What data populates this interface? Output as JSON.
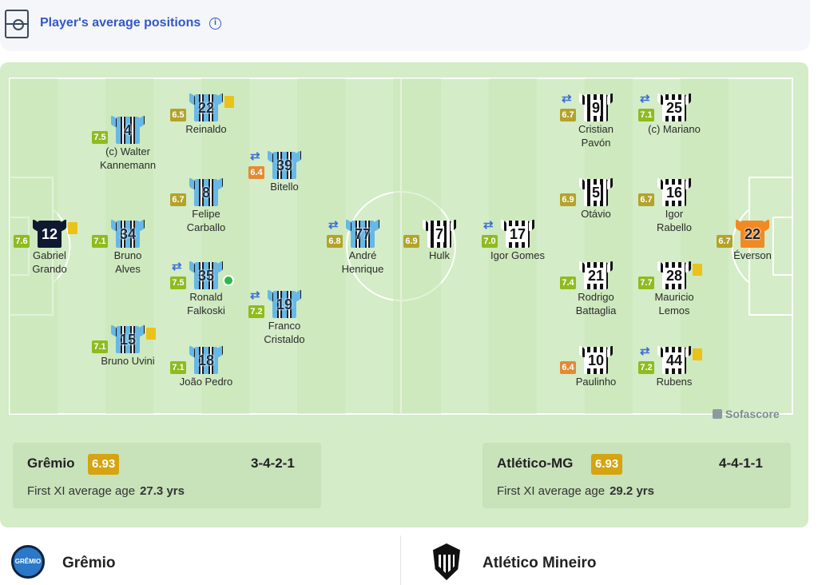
{
  "header": {
    "title": "Player's average positions",
    "info_icon": "info-icon",
    "pitch_icon": "pitch-icon"
  },
  "colors": {
    "panel_bg": "#d4ecc7",
    "pitch_line": "#ffffff",
    "rating_badge": "#d5a410",
    "link_blue": "#3358c6"
  },
  "home": {
    "name": "Grêmio",
    "rating": "6.93",
    "formation": "3-4-2-1",
    "age_label": "First XI average age",
    "age_value": "27.3 yrs",
    "players": [
      {
        "number": "12",
        "name1": "Gabriel",
        "name2": "Grando",
        "rating": "7.6"
      },
      {
        "number": "4",
        "name1": "(c) Walter",
        "name2": "Kannemann",
        "rating": "7.5"
      },
      {
        "number": "34",
        "name1": "Bruno",
        "name2": "Alves",
        "rating": "7.1"
      },
      {
        "number": "15",
        "name1": "Bruno Uvini",
        "name2": "",
        "rating": "7.1"
      },
      {
        "number": "22",
        "name1": "Reinaldo",
        "name2": "",
        "rating": "6.5"
      },
      {
        "number": "8",
        "name1": "Felipe",
        "name2": "Carballo",
        "rating": "6.7"
      },
      {
        "number": "35",
        "name1": "Ronald",
        "name2": "Falkoski",
        "rating": "7.5"
      },
      {
        "number": "18",
        "name1": "João Pedro",
        "name2": "",
        "rating": "7.1"
      },
      {
        "number": "39",
        "name1": "Bitello",
        "name2": "",
        "rating": "6.4"
      },
      {
        "number": "19",
        "name1": "Franco",
        "name2": "Cristaldo",
        "rating": "7.2"
      },
      {
        "number": "77",
        "name1": "André",
        "name2": "Henrique",
        "rating": "6.8"
      }
    ]
  },
  "away": {
    "name": "Atlético-MG",
    "rating": "6.93",
    "formation": "4-4-1-1",
    "age_label": "First XI average age",
    "age_value": "29.2 yrs",
    "players": [
      {
        "number": "7",
        "name1": "Hulk",
        "name2": "",
        "rating": "6.9"
      },
      {
        "number": "17",
        "name1": "Igor Gomes",
        "name2": "",
        "rating": "7.0"
      },
      {
        "number": "9",
        "name1": "Cristian",
        "name2": "Pavón",
        "rating": "6.7"
      },
      {
        "number": "5",
        "name1": "Otávio",
        "name2": "",
        "rating": "6.9"
      },
      {
        "number": "21",
        "name1": "Rodrigo",
        "name2": "Battaglia",
        "rating": "7.4"
      },
      {
        "number": "10",
        "name1": "Paulinho",
        "name2": "",
        "rating": "6.4"
      },
      {
        "number": "25",
        "name1": "(c) Mariano",
        "name2": "",
        "rating": "7.1"
      },
      {
        "number": "16",
        "name1": "Igor",
        "name2": "Rabello",
        "rating": "6.7"
      },
      {
        "number": "28",
        "name1": "Mauricio",
        "name2": "Lemos",
        "rating": "7.7"
      },
      {
        "number": "44",
        "name1": "Rubens",
        "name2": "",
        "rating": "7.2"
      },
      {
        "number": "22",
        "name1": "Éverson",
        "name2": "",
        "rating": "6.7"
      }
    ]
  },
  "branding": {
    "watermark": "Sofascore"
  },
  "footer": {
    "home_team": "Grêmio",
    "away_team": "Atlético Mineiro",
    "home_crest_text": "GRÊMIO"
  }
}
